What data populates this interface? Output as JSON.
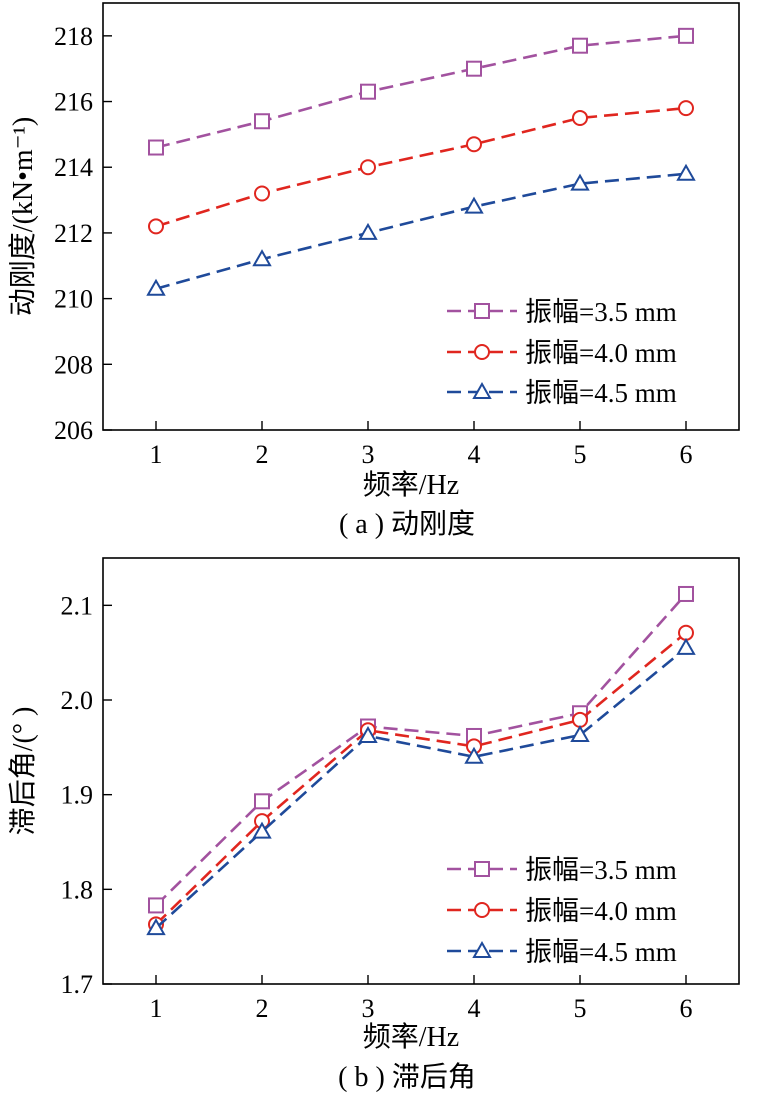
{
  "chart_data": [
    {
      "type": "line",
      "xlabel": "频率/Hz",
      "ylabel": "动刚度/(kN•m⁻¹)",
      "caption": "( a ) 动刚度",
      "x": [
        1,
        2,
        3,
        4,
        5,
        6
      ],
      "xlim": [
        0.5,
        6.5
      ],
      "ylim": [
        206,
        219
      ],
      "yticks": [
        "206",
        "208",
        "210",
        "212",
        "214",
        "216",
        "218"
      ],
      "xticks": [
        "1",
        "2",
        "3",
        "4",
        "5",
        "6"
      ],
      "grid": false,
      "legend_position": "bottom-right",
      "series": [
        {
          "name": "振幅=3.5 mm",
          "color": "#a2529f",
          "marker": "square",
          "values": [
            214.6,
            215.4,
            216.3,
            217.0,
            217.7,
            218.0
          ]
        },
        {
          "name": "振幅=4.0 mm",
          "color": "#e0261f",
          "marker": "circle",
          "values": [
            212.2,
            213.2,
            214.0,
            214.7,
            215.5,
            215.8
          ]
        },
        {
          "name": "振幅=4.5 mm",
          "color": "#1f4a9a",
          "marker": "triangle",
          "values": [
            210.3,
            211.2,
            212.0,
            212.8,
            213.5,
            213.8
          ]
        }
      ]
    },
    {
      "type": "line",
      "xlabel": "频率/Hz",
      "ylabel": "滞后角/(° )",
      "caption": "( b ) 滞后角",
      "x": [
        1,
        2,
        3,
        4,
        5,
        6
      ],
      "xlim": [
        0.5,
        6.5
      ],
      "ylim": [
        1.7,
        2.15
      ],
      "yticks": [
        "1.7",
        "1.8",
        "1.9",
        "2.0",
        "2.1"
      ],
      "xticks": [
        "1",
        "2",
        "3",
        "4",
        "5",
        "6"
      ],
      "grid": false,
      "legend_position": "bottom-right",
      "series": [
        {
          "name": "振幅=3.5 mm",
          "color": "#a2529f",
          "marker": "square",
          "values": [
            1.783,
            1.893,
            1.972,
            1.962,
            1.986,
            2.112
          ]
        },
        {
          "name": "振幅=4.0 mm",
          "color": "#e0261f",
          "marker": "circle",
          "values": [
            1.763,
            1.872,
            1.968,
            1.951,
            1.979,
            2.071
          ]
        },
        {
          "name": "振幅=4.5 mm",
          "color": "#1f4a9a",
          "marker": "triangle",
          "values": [
            1.759,
            1.861,
            1.962,
            1.94,
            1.963,
            2.055
          ]
        }
      ]
    }
  ]
}
